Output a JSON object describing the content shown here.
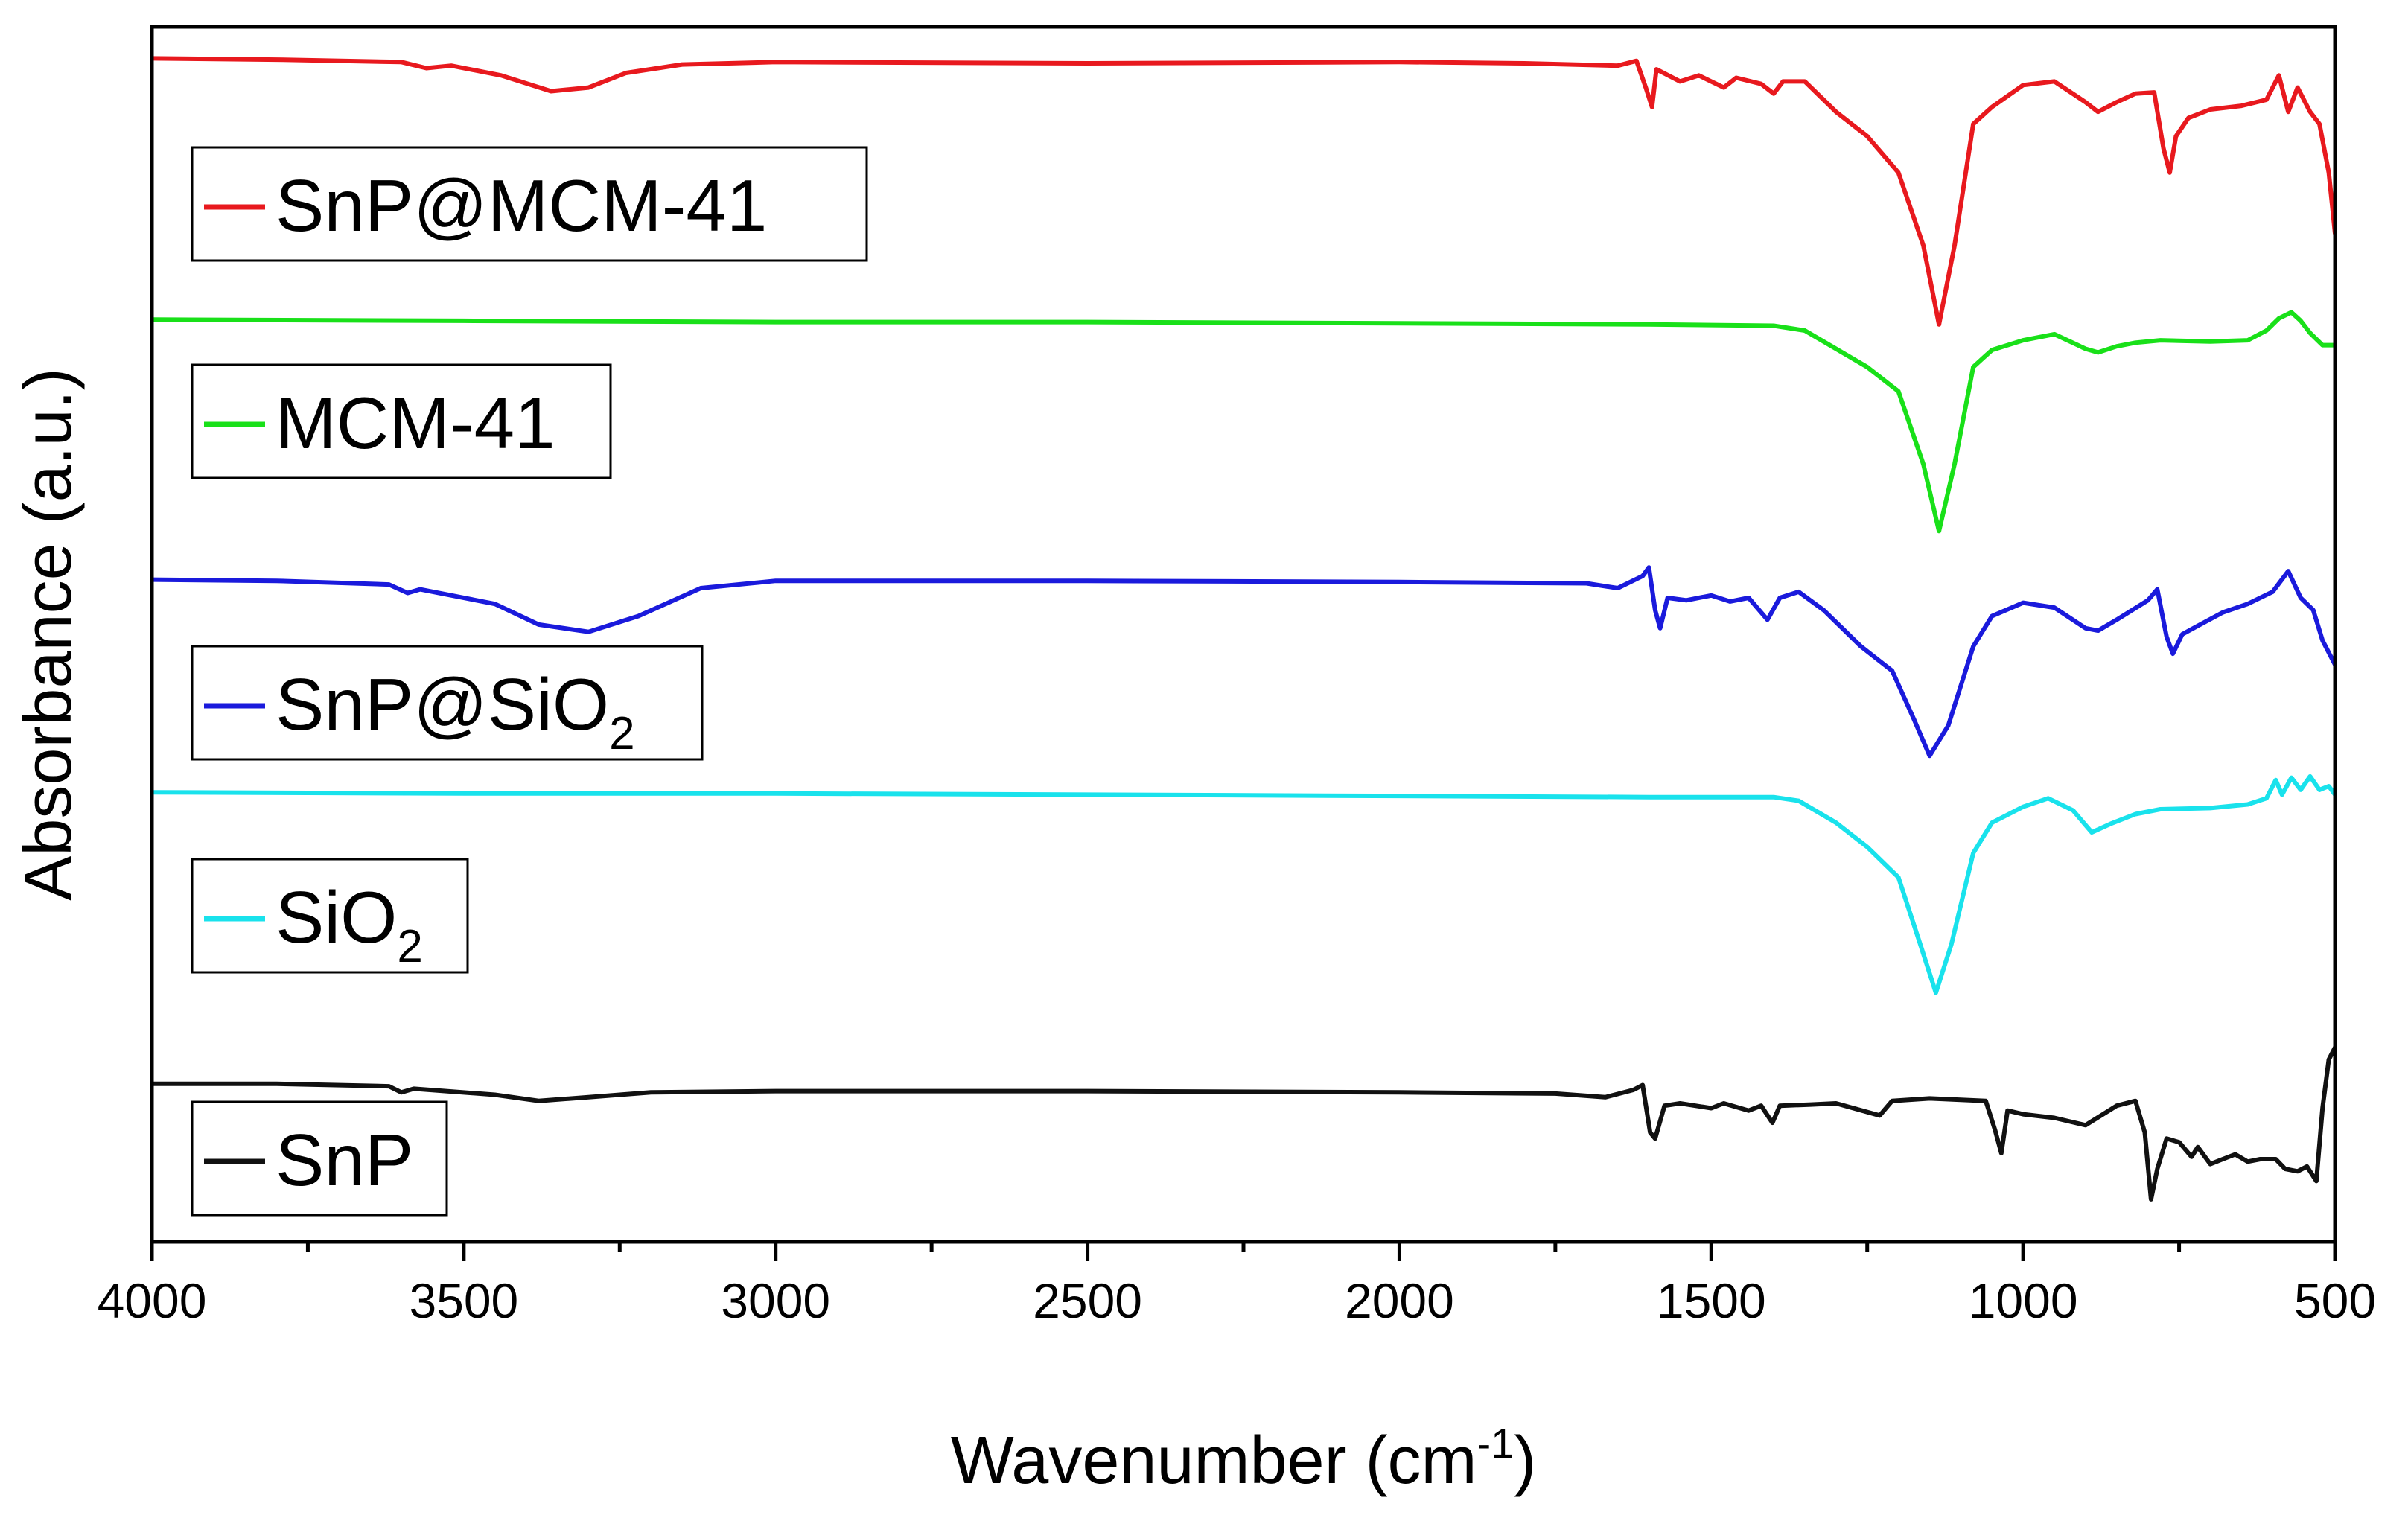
{
  "chart_data": {
    "type": "line",
    "title": "",
    "xlabel_main": "Wavenumber (cm",
    "xlabel_sup": "-1",
    "xlabel_close": ")",
    "ylabel": "Absorbance (a.u.)",
    "xlim": [
      4000,
      500
    ],
    "ylim": [
      0,
      1
    ],
    "xticks": [
      4000,
      3500,
      3000,
      2500,
      2000,
      1500,
      1000,
      500
    ],
    "yticks_shown": false,
    "series": [
      {
        "name": "SnP@MCM-41",
        "label_main": "SnP@MCM-41",
        "label_sub": "",
        "color": "#e8191e",
        "points": [
          [
            4000,
            0.974
          ],
          [
            3800,
            0.973
          ],
          [
            3600,
            0.971
          ],
          [
            3560,
            0.966
          ],
          [
            3520,
            0.968
          ],
          [
            3440,
            0.96
          ],
          [
            3360,
            0.947
          ],
          [
            3300,
            0.95
          ],
          [
            3240,
            0.962
          ],
          [
            3150,
            0.969
          ],
          [
            3000,
            0.971
          ],
          [
            2500,
            0.97
          ],
          [
            2000,
            0.971
          ],
          [
            1800,
            0.97
          ],
          [
            1650,
            0.968
          ],
          [
            1620,
            0.972
          ],
          [
            1605,
            0.95
          ],
          [
            1595,
            0.934
          ],
          [
            1588,
            0.965
          ],
          [
            1550,
            0.955
          ],
          [
            1520,
            0.96
          ],
          [
            1480,
            0.95
          ],
          [
            1460,
            0.958
          ],
          [
            1420,
            0.953
          ],
          [
            1400,
            0.945
          ],
          [
            1385,
            0.955
          ],
          [
            1350,
            0.955
          ],
          [
            1300,
            0.93
          ],
          [
            1250,
            0.91
          ],
          [
            1200,
            0.88
          ],
          [
            1160,
            0.82
          ],
          [
            1135,
            0.755
          ],
          [
            1110,
            0.82
          ],
          [
            1080,
            0.92
          ],
          [
            1050,
            0.934
          ],
          [
            1000,
            0.952
          ],
          [
            950,
            0.955
          ],
          [
            900,
            0.938
          ],
          [
            880,
            0.93
          ],
          [
            850,
            0.938
          ],
          [
            820,
            0.945
          ],
          [
            790,
            0.946
          ],
          [
            775,
            0.9
          ],
          [
            765,
            0.88
          ],
          [
            755,
            0.91
          ],
          [
            735,
            0.925
          ],
          [
            700,
            0.932
          ],
          [
            650,
            0.935
          ],
          [
            610,
            0.94
          ],
          [
            590,
            0.96
          ],
          [
            575,
            0.93
          ],
          [
            560,
            0.95
          ],
          [
            540,
            0.93
          ],
          [
            525,
            0.92
          ],
          [
            510,
            0.88
          ],
          [
            500,
            0.83
          ]
        ]
      },
      {
        "name": "MCM-41",
        "label_main": "MCM-41",
        "label_sub": "",
        "color": "#19e019",
        "points": [
          [
            4000,
            0.759
          ],
          [
            3500,
            0.758
          ],
          [
            3000,
            0.757
          ],
          [
            2500,
            0.757
          ],
          [
            2000,
            0.756
          ],
          [
            1600,
            0.755
          ],
          [
            1400,
            0.754
          ],
          [
            1350,
            0.75
          ],
          [
            1300,
            0.735
          ],
          [
            1250,
            0.72
          ],
          [
            1200,
            0.7
          ],
          [
            1160,
            0.64
          ],
          [
            1135,
            0.585
          ],
          [
            1110,
            0.64
          ],
          [
            1080,
            0.72
          ],
          [
            1050,
            0.734
          ],
          [
            1000,
            0.742
          ],
          [
            950,
            0.747
          ],
          [
            900,
            0.735
          ],
          [
            880,
            0.732
          ],
          [
            850,
            0.737
          ],
          [
            820,
            0.74
          ],
          [
            780,
            0.742
          ],
          [
            700,
            0.741
          ],
          [
            640,
            0.742
          ],
          [
            610,
            0.75
          ],
          [
            590,
            0.76
          ],
          [
            570,
            0.765
          ],
          [
            555,
            0.758
          ],
          [
            540,
            0.748
          ],
          [
            520,
            0.738
          ],
          [
            500,
            0.738
          ]
        ]
      },
      {
        "name": "SnP@SiO2",
        "label_main": "SnP@SiO",
        "label_sub": "2",
        "color": "#1a1adc",
        "points": [
          [
            4000,
            0.545
          ],
          [
            3800,
            0.544
          ],
          [
            3620,
            0.541
          ],
          [
            3590,
            0.534
          ],
          [
            3570,
            0.537
          ],
          [
            3450,
            0.525
          ],
          [
            3380,
            0.508
          ],
          [
            3300,
            0.502
          ],
          [
            3220,
            0.515
          ],
          [
            3120,
            0.538
          ],
          [
            3000,
            0.544
          ],
          [
            2500,
            0.544
          ],
          [
            2000,
            0.543
          ],
          [
            1700,
            0.542
          ],
          [
            1650,
            0.538
          ],
          [
            1610,
            0.548
          ],
          [
            1600,
            0.555
          ],
          [
            1590,
            0.52
          ],
          [
            1582,
            0.505
          ],
          [
            1570,
            0.53
          ],
          [
            1540,
            0.528
          ],
          [
            1500,
            0.532
          ],
          [
            1470,
            0.527
          ],
          [
            1440,
            0.53
          ],
          [
            1410,
            0.512
          ],
          [
            1390,
            0.53
          ],
          [
            1360,
            0.535
          ],
          [
            1320,
            0.52
          ],
          [
            1260,
            0.49
          ],
          [
            1210,
            0.47
          ],
          [
            1175,
            0.43
          ],
          [
            1150,
            0.4
          ],
          [
            1120,
            0.425
          ],
          [
            1080,
            0.49
          ],
          [
            1050,
            0.515
          ],
          [
            1000,
            0.526
          ],
          [
            950,
            0.522
          ],
          [
            900,
            0.505
          ],
          [
            880,
            0.503
          ],
          [
            850,
            0.512
          ],
          [
            800,
            0.528
          ],
          [
            785,
            0.537
          ],
          [
            770,
            0.498
          ],
          [
            760,
            0.484
          ],
          [
            745,
            0.5
          ],
          [
            720,
            0.507
          ],
          [
            680,
            0.518
          ],
          [
            640,
            0.525
          ],
          [
            600,
            0.535
          ],
          [
            575,
            0.552
          ],
          [
            555,
            0.53
          ],
          [
            535,
            0.52
          ],
          [
            520,
            0.495
          ],
          [
            500,
            0.475
          ]
        ]
      },
      {
        "name": "SiO2",
        "label_main": "SiO",
        "label_sub": "2",
        "color": "#19e2ec",
        "points": [
          [
            4000,
            0.37
          ],
          [
            3500,
            0.369
          ],
          [
            3000,
            0.369
          ],
          [
            2500,
            0.368
          ],
          [
            2000,
            0.367
          ],
          [
            1600,
            0.366
          ],
          [
            1400,
            0.366
          ],
          [
            1360,
            0.363
          ],
          [
            1300,
            0.345
          ],
          [
            1250,
            0.325
          ],
          [
            1200,
            0.3
          ],
          [
            1165,
            0.245
          ],
          [
            1140,
            0.205
          ],
          [
            1115,
            0.245
          ],
          [
            1080,
            0.32
          ],
          [
            1050,
            0.345
          ],
          [
            1000,
            0.358
          ],
          [
            960,
            0.365
          ],
          [
            920,
            0.355
          ],
          [
            890,
            0.337
          ],
          [
            860,
            0.344
          ],
          [
            820,
            0.352
          ],
          [
            780,
            0.356
          ],
          [
            700,
            0.357
          ],
          [
            640,
            0.36
          ],
          [
            610,
            0.365
          ],
          [
            595,
            0.38
          ],
          [
            585,
            0.368
          ],
          [
            570,
            0.382
          ],
          [
            555,
            0.372
          ],
          [
            540,
            0.383
          ],
          [
            525,
            0.372
          ],
          [
            510,
            0.375
          ],
          [
            500,
            0.368
          ]
        ]
      },
      {
        "name": "SnP",
        "label_main": "SnP",
        "label_sub": "",
        "color": "#111111",
        "points": [
          [
            4000,
            0.13
          ],
          [
            3800,
            0.13
          ],
          [
            3620,
            0.128
          ],
          [
            3600,
            0.123
          ],
          [
            3580,
            0.126
          ],
          [
            3450,
            0.121
          ],
          [
            3380,
            0.116
          ],
          [
            3300,
            0.119
          ],
          [
            3200,
            0.123
          ],
          [
            3000,
            0.124
          ],
          [
            2500,
            0.124
          ],
          [
            2000,
            0.123
          ],
          [
            1750,
            0.122
          ],
          [
            1670,
            0.119
          ],
          [
            1625,
            0.125
          ],
          [
            1610,
            0.129
          ],
          [
            1598,
            0.09
          ],
          [
            1590,
            0.085
          ],
          [
            1575,
            0.112
          ],
          [
            1550,
            0.114
          ],
          [
            1500,
            0.11
          ],
          [
            1480,
            0.114
          ],
          [
            1440,
            0.108
          ],
          [
            1420,
            0.112
          ],
          [
            1402,
            0.098
          ],
          [
            1390,
            0.112
          ],
          [
            1340,
            0.113
          ],
          [
            1300,
            0.114
          ],
          [
            1230,
            0.104
          ],
          [
            1210,
            0.116
          ],
          [
            1150,
            0.118
          ],
          [
            1060,
            0.116
          ],
          [
            1045,
            0.092
          ],
          [
            1035,
            0.073
          ],
          [
            1025,
            0.108
          ],
          [
            1000,
            0.105
          ],
          [
            950,
            0.102
          ],
          [
            900,
            0.096
          ],
          [
            850,
            0.112
          ],
          [
            820,
            0.116
          ],
          [
            805,
            0.09
          ],
          [
            795,
            0.035
          ],
          [
            785,
            0.06
          ],
          [
            770,
            0.085
          ],
          [
            750,
            0.082
          ],
          [
            730,
            0.07
          ],
          [
            720,
            0.078
          ],
          [
            700,
            0.064
          ],
          [
            680,
            0.068
          ],
          [
            660,
            0.072
          ],
          [
            640,
            0.066
          ],
          [
            620,
            0.068
          ],
          [
            595,
            0.068
          ],
          [
            580,
            0.06
          ],
          [
            560,
            0.058
          ],
          [
            545,
            0.062
          ],
          [
            530,
            0.05
          ],
          [
            520,
            0.11
          ],
          [
            510,
            0.15
          ],
          [
            500,
            0.16
          ]
        ]
      }
    ]
  }
}
